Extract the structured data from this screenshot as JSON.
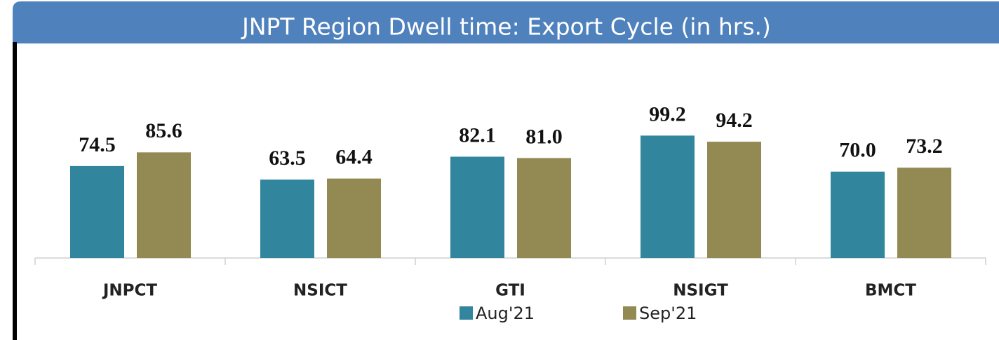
{
  "chart_data": {
    "type": "bar",
    "title": "JNPT Region Dwell time: Export Cycle (in hrs.)",
    "categories": [
      "JNPCT",
      "NSICT",
      "GTI",
      "NSIGT",
      "BMCT"
    ],
    "series": [
      {
        "name": "Aug'21",
        "color": "#31859c",
        "values": [
          74.5,
          63.5,
          82.1,
          99.2,
          70.0
        ],
        "value_labels": [
          "74.5",
          "63.5",
          "82.1",
          "99.2",
          "70.0"
        ]
      },
      {
        "name": "Sep'21",
        "color": "#938953",
        "values": [
          85.6,
          64.4,
          81.0,
          94.2,
          73.2
        ],
        "value_labels": [
          "85.6",
          "64.4",
          "81.0",
          "94.2",
          "73.2"
        ]
      }
    ],
    "ylim": [
      0,
      150
    ],
    "legend": "bottom"
  }
}
